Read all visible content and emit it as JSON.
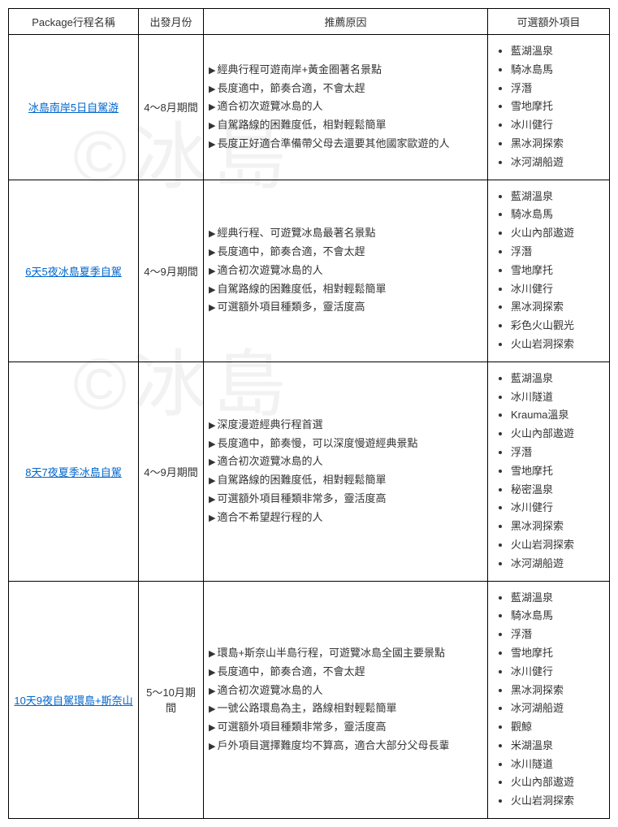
{
  "watermark_text": "©冰島",
  "headers": {
    "name": "Package行程名稱",
    "month": "出發月份",
    "reason": "推薦原因",
    "extra": "可選額外項目"
  },
  "rows": [
    {
      "name": "冰島南岸5日自駕游",
      "month": "4～8月期間",
      "reasons": [
        "經典行程可遊南岸+黃金圈著名景點",
        "長度適中，節奏合適，不會太趕",
        "適合初次遊覽冰島的人",
        "自駕路線的困難度低，相對輕鬆簡單",
        "長度正好適合準備帶父母去還要其他國家歐遊的人"
      ],
      "extras": [
        "藍湖溫泉",
        "騎冰島馬",
        "浮潛",
        "雪地摩托",
        "冰川健行",
        "黑冰洞探索",
        "冰河湖船遊"
      ]
    },
    {
      "name": "6天5夜冰島夏季自駕",
      "month": "4～9月期間",
      "reasons": [
        "經典行程、可遊覽冰島最著名景點",
        "長度適中，節奏合適，不會太趕",
        "適合初次遊覽冰島的人",
        "自駕路線的困難度低，相對輕鬆簡單",
        "可選額外項目種類多，靈活度高"
      ],
      "extras": [
        "藍湖溫泉",
        "騎冰島馬",
        "火山內部遨遊",
        "浮潛",
        "雪地摩托",
        "冰川健行",
        "黑冰洞探索",
        "彩色火山觀光",
        "火山岩洞探索"
      ]
    },
    {
      "name": "8天7夜夏季冰島自駕",
      "month": "4～9月期間",
      "reasons": [
        "深度漫遊經典行程首選",
        "長度適中，節奏慢，可以深度慢遊經典景點",
        "適合初次遊覽冰島的人",
        "自駕路線的困難度低，相對輕鬆簡單",
        "可選額外項目種類非常多，靈活度高",
        "適合不希望趕行程的人"
      ],
      "extras": [
        "藍湖溫泉",
        "冰川隧道",
        "Krauma溫泉",
        "火山內部遨遊",
        "浮潛",
        "雪地摩托",
        "秘密溫泉",
        "冰川健行",
        "黑冰洞探索",
        "火山岩洞探索",
        "冰河湖船遊"
      ]
    },
    {
      "name": "10天9夜自駕環島+斯奈山",
      "month": "5～10月期間",
      "reasons": [
        "環島+斯奈山半島行程，可遊覽冰島全國主要景點",
        "長度適中，節奏合適，不會太趕",
        "適合初次遊覽冰島的人",
        "一號公路環島為主，路線相對輕鬆簡單",
        "可選額外項目種類非常多，靈活度高",
        "戶外項目選擇難度均不算高，適合大部分父母長輩"
      ],
      "extras": [
        "藍湖溫泉",
        "騎冰島馬",
        "浮潛",
        "雪地摩托",
        "冰川健行",
        "黑冰洞探索",
        "冰河湖船遊",
        "觀鯨",
        "米湖溫泉",
        "冰川隧道",
        "火山內部遨遊",
        "火山岩洞探索"
      ]
    }
  ]
}
